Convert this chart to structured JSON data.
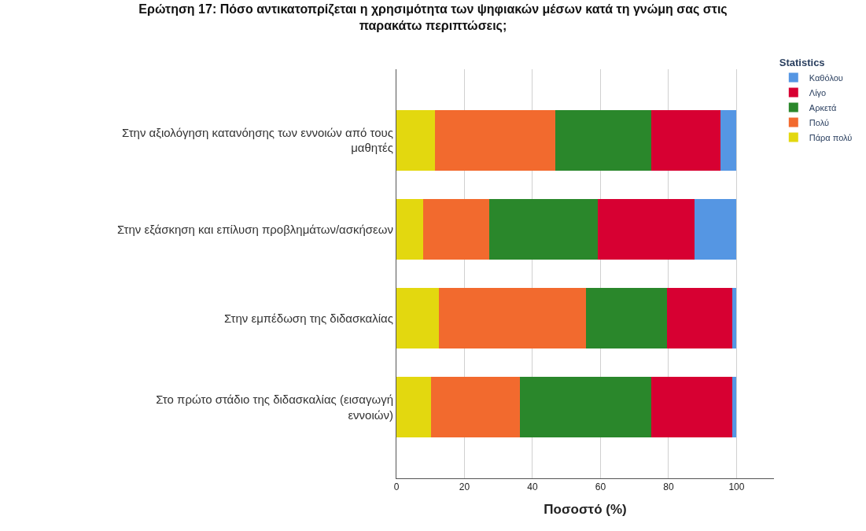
{
  "chart_data": {
    "type": "bar",
    "orientation": "horizontal",
    "stacked": true,
    "title": "Ερώτηση 17: Πόσο αντικατοπρίζεται η χρησιμότητα των ψηφιακών μέσων κατά τη γνώμη σας στις παρακάτω περιπτώσεις;",
    "xlabel": "Ποσοστό (%)",
    "legend_title": "Statistics",
    "categories": [
      "Στην αξιολόγηση κατανόησης των εννοιών από τους μαθητές",
      "Στην εξάσκηση και επίλυση προβλημάτων/ασκήσεων",
      "Στην εμπέδωση της διδασκαλίας",
      "Στο πρώτο στάδιο της διδασκαλίας (εισαγωγή εννοιών)"
    ],
    "series": [
      {
        "name": "Πάρα πολύ",
        "color": "#e3d80f",
        "values": [
          11.3,
          7.9,
          12.4,
          10.2
        ]
      },
      {
        "name": "Πολύ",
        "color": "#f26a2e",
        "values": [
          35.4,
          19.4,
          43.3,
          26.1
        ]
      },
      {
        "name": "Αρκετά",
        "color": "#2a872b",
        "values": [
          28.3,
          31.9,
          23.9,
          38.7
        ]
      },
      {
        "name": "Λίγο",
        "color": "#d70032",
        "values": [
          20.3,
          28.4,
          19.2,
          23.8
        ]
      },
      {
        "name": "Καθόλου",
        "color": "#5596e3",
        "values": [
          4.7,
          12.4,
          1.2,
          1.2
        ]
      }
    ],
    "xlim": [
      0,
      111
    ],
    "xticks": [
      0,
      20,
      40,
      60,
      80,
      100
    ],
    "grid": "x",
    "legend": "top right"
  }
}
